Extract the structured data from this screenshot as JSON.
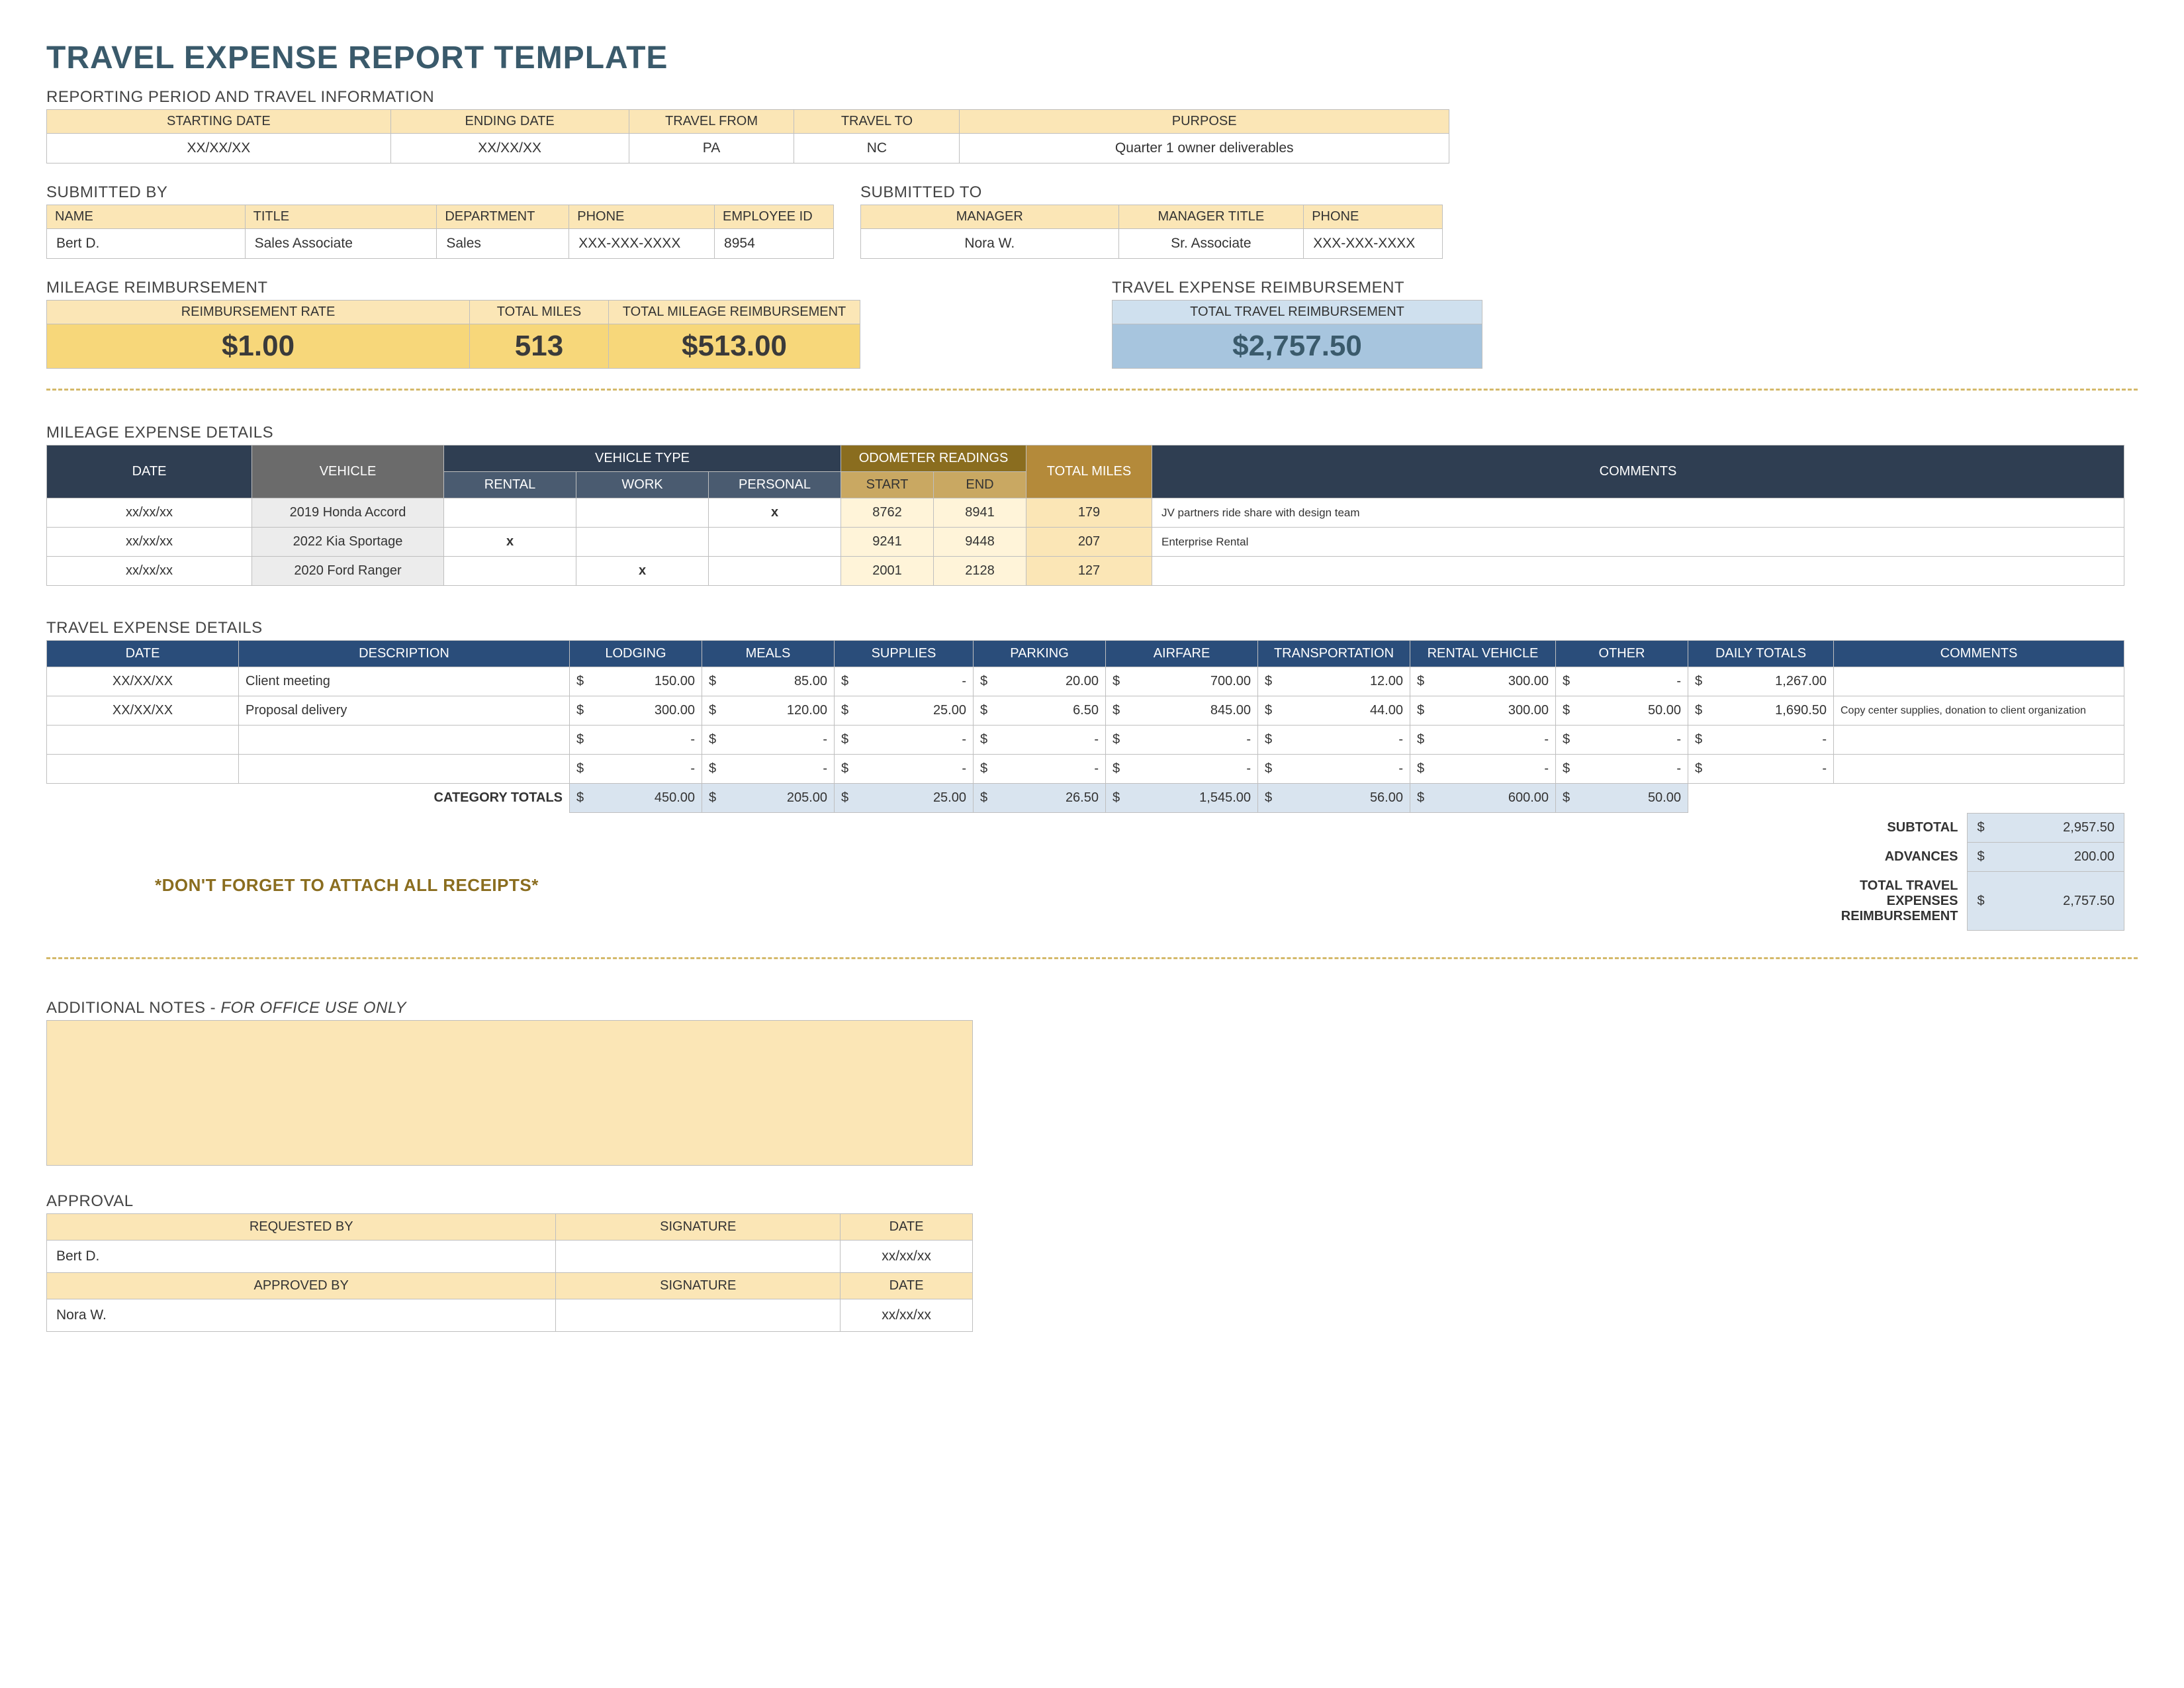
{
  "title": "TRAVEL EXPENSE REPORT TEMPLATE",
  "reporting": {
    "section_label": "REPORTING PERIOD AND TRAVEL INFORMATION",
    "headers": {
      "start": "STARTING DATE",
      "end": "ENDING DATE",
      "from": "TRAVEL FROM",
      "to": "TRAVEL TO",
      "purpose": "PURPOSE"
    },
    "values": {
      "start": "XX/XX/XX",
      "end": "XX/XX/XX",
      "from": "PA",
      "to": "NC",
      "purpose": "Quarter 1 owner deliverables"
    }
  },
  "submitted_by": {
    "label": "SUBMITTED BY",
    "headers": {
      "name": "NAME",
      "title": "TITLE",
      "dept": "DEPARTMENT",
      "phone": "PHONE",
      "empid": "EMPLOYEE ID"
    },
    "values": {
      "name": "Bert D.",
      "title": "Sales Associate",
      "dept": "Sales",
      "phone": "XXX-XXX-XXXX",
      "empid": "8954"
    }
  },
  "submitted_to": {
    "label": "SUBMITTED TO",
    "headers": {
      "manager": "MANAGER",
      "mgr_title": "MANAGER TITLE",
      "phone": "PHONE"
    },
    "values": {
      "manager": "Nora W.",
      "mgr_title": "Sr. Associate",
      "phone": "XXX-XXX-XXXX"
    }
  },
  "mileage_reimb": {
    "label": "MILEAGE REIMBURSEMENT",
    "headers": {
      "rate": "REIMBURSEMENT RATE",
      "miles": "TOTAL MILES",
      "total": "TOTAL MILEAGE REIMBURSEMENT"
    },
    "values": {
      "rate": "$1.00",
      "miles": "513",
      "total": "$513.00"
    }
  },
  "travel_reimb": {
    "label": "TRAVEL EXPENSE REIMBURSEMENT",
    "header": "TOTAL TRAVEL REIMBURSEMENT",
    "value": "$2,757.50"
  },
  "mileage_details": {
    "label": "MILEAGE EXPENSE DETAILS",
    "headers": {
      "date": "DATE",
      "vehicle": "VEHICLE",
      "vtype": "VEHICLE TYPE",
      "rental": "RENTAL",
      "work": "WORK",
      "personal": "PERSONAL",
      "odo": "ODOMETER READINGS",
      "start": "START",
      "end": "END",
      "miles": "TOTAL MILES",
      "comments": "COMMENTS"
    },
    "rows": [
      {
        "date": "xx/xx/xx",
        "vehicle": "2019 Honda Accord",
        "rental": "",
        "work": "",
        "personal": "x",
        "start": "8762",
        "end": "8941",
        "miles": "179",
        "comment": "JV partners ride share with design team"
      },
      {
        "date": "xx/xx/xx",
        "vehicle": "2022 Kia Sportage",
        "rental": "x",
        "work": "",
        "personal": "",
        "start": "9241",
        "end": "9448",
        "miles": "207",
        "comment": "Enterprise Rental"
      },
      {
        "date": "xx/xx/xx",
        "vehicle": "2020 Ford Ranger",
        "rental": "",
        "work": "x",
        "personal": "",
        "start": "2001",
        "end": "2128",
        "miles": "127",
        "comment": ""
      }
    ]
  },
  "expense_details": {
    "label": "TRAVEL EXPENSE DETAILS",
    "headers": {
      "date": "DATE",
      "desc": "DESCRIPTION",
      "lodging": "LODGING",
      "meals": "MEALS",
      "supplies": "SUPPLIES",
      "parking": "PARKING",
      "airfare": "AIRFARE",
      "transport": "TRANSPORTATION",
      "rental": "RENTAL VEHICLE",
      "other": "OTHER",
      "daily": "DAILY TOTALS",
      "comments": "COMMENTS"
    },
    "rows": [
      {
        "date": "XX/XX/XX",
        "desc": "Client meeting",
        "lodging": "150.00",
        "meals": "85.00",
        "supplies": "-",
        "parking": "20.00",
        "airfare": "700.00",
        "transport": "12.00",
        "rental": "300.00",
        "other": "-",
        "daily": "1,267.00",
        "comment": ""
      },
      {
        "date": "XX/XX/XX",
        "desc": "Proposal delivery",
        "lodging": "300.00",
        "meals": "120.00",
        "supplies": "25.00",
        "parking": "6.50",
        "airfare": "845.00",
        "transport": "44.00",
        "rental": "300.00",
        "other": "50.00",
        "daily": "1,690.50",
        "comment": "Copy center supplies, donation to client organization"
      },
      {
        "date": "",
        "desc": "",
        "lodging": "-",
        "meals": "-",
        "supplies": "-",
        "parking": "-",
        "airfare": "-",
        "transport": "-",
        "rental": "-",
        "other": "-",
        "daily": "-",
        "comment": ""
      },
      {
        "date": "",
        "desc": "",
        "lodging": "-",
        "meals": "-",
        "supplies": "-",
        "parking": "-",
        "airfare": "-",
        "transport": "-",
        "rental": "-",
        "other": "-",
        "daily": "-",
        "comment": ""
      }
    ],
    "category_label": "CATEGORY TOTALS",
    "category_totals": {
      "lodging": "450.00",
      "meals": "205.00",
      "supplies": "25.00",
      "parking": "26.50",
      "airfare": "1,545.00",
      "transport": "56.00",
      "rental": "600.00",
      "other": "50.00"
    },
    "summary": {
      "subtotal_label": "SUBTOTAL",
      "subtotal": "2,957.50",
      "advances_label": "ADVANCES",
      "advances": "200.00",
      "total_label": "TOTAL TRAVEL EXPENSES REIMBURSEMENT",
      "total": "2,757.50"
    },
    "receipt_note": "*DON'T FORGET TO ATTACH ALL RECEIPTS*"
  },
  "notes": {
    "label_prefix": "ADDITIONAL NOTES - ",
    "label_italic": "FOR OFFICE USE ONLY"
  },
  "approval": {
    "label": "APPROVAL",
    "headers": {
      "req": "REQUESTED BY",
      "sig": "SIGNATURE",
      "date": "DATE",
      "app": "APPROVED BY"
    },
    "requested": {
      "name": "Bert D.",
      "date": "xx/xx/xx"
    },
    "approved": {
      "name": "Nora W.",
      "date": "xx/xx/xx"
    }
  },
  "currency": "$"
}
